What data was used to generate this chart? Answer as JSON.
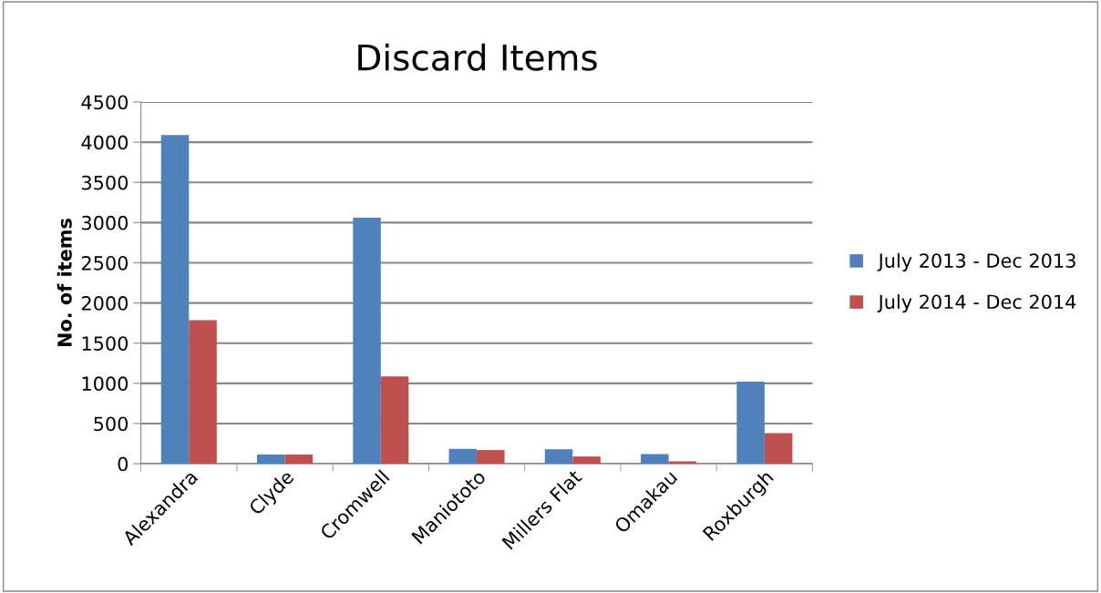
{
  "chart_data": {
    "type": "bar",
    "title": "Discard Items",
    "ylabel": "No. of items",
    "categories": [
      "Alexandra",
      "Clyde",
      "Cromwell",
      "Maniototo",
      "Millers Flat",
      "Omakau",
      "Roxburgh"
    ],
    "series": [
      {
        "name": "July 2013 - Dec 2013",
        "color": "#4f81bd",
        "values": [
          4090,
          115,
          3060,
          185,
          180,
          120,
          1020
        ]
      },
      {
        "name": "July 2014 - Dec 2014",
        "color": "#c0504d",
        "values": [
          1785,
          115,
          1085,
          170,
          90,
          30,
          380
        ]
      }
    ],
    "ylim": [
      0,
      4500
    ],
    "yticks": [
      0,
      500,
      1000,
      1500,
      2000,
      2500,
      3000,
      3500,
      4000,
      4500
    ],
    "grid": "y",
    "legend": "right"
  }
}
